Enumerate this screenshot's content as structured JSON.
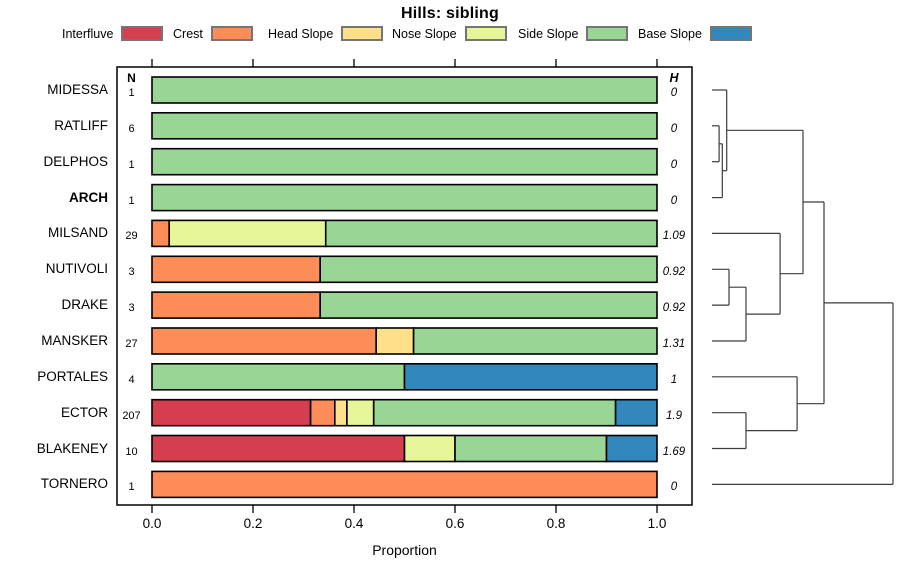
{
  "title": "Hills: sibling",
  "n_header": "N",
  "h_header": "H",
  "chart_data": {
    "type": "bar",
    "subtype": "horizontal-stacked-proportion-with-dendrogram",
    "title": "Hills: sibling",
    "xlabel": "Proportion",
    "xlim": [
      0,
      1
    ],
    "grid": false,
    "legend_position": "top",
    "x_ticks": [
      {
        "label": "0.0",
        "value": 0.0
      },
      {
        "label": "0.2",
        "value": 0.2
      },
      {
        "label": "0.4",
        "value": 0.4
      },
      {
        "label": "0.6",
        "value": 0.6
      },
      {
        "label": "0.8",
        "value": 0.8
      },
      {
        "label": "1.0",
        "value": 1.0
      }
    ],
    "categories": [
      "Interfluve",
      "Crest",
      "Head Slope",
      "Nose Slope",
      "Side Slope",
      "Base Slope"
    ],
    "colors": {
      "Interfluve": "#d53e4f",
      "Crest": "#fc8d59",
      "Head Slope": "#fee08b",
      "Nose Slope": "#e6f598",
      "Side Slope": "#99d594",
      "Base Slope": "#3288bd"
    },
    "rows": [
      {
        "label": "MIDESSA",
        "bold": false,
        "n": "1",
        "h": "0",
        "segments": [
          {
            "category": "Side Slope",
            "value": 1
          }
        ]
      },
      {
        "label": "RATLIFF",
        "bold": false,
        "n": "6",
        "h": "0",
        "segments": [
          {
            "category": "Side Slope",
            "value": 1
          }
        ]
      },
      {
        "label": "DELPHOS",
        "bold": false,
        "n": "1",
        "h": "0",
        "segments": [
          {
            "category": "Side Slope",
            "value": 1
          }
        ]
      },
      {
        "label": "ARCH",
        "bold": true,
        "n": "1",
        "h": "0",
        "segments": [
          {
            "category": "Side Slope",
            "value": 1
          }
        ]
      },
      {
        "label": "MILSAND",
        "bold": false,
        "n": "29",
        "h": "1.09",
        "segments": [
          {
            "category": "Crest",
            "value": 0.034
          },
          {
            "category": "Nose Slope",
            "value": 0.31
          },
          {
            "category": "Side Slope",
            "value": 0.656
          }
        ]
      },
      {
        "label": "NUTIVOLI",
        "bold": false,
        "n": "3",
        "h": "0.92",
        "segments": [
          {
            "category": "Crest",
            "value": 0.333
          },
          {
            "category": "Side Slope",
            "value": 0.667
          }
        ]
      },
      {
        "label": "DRAKE",
        "bold": false,
        "n": "3",
        "h": "0.92",
        "segments": [
          {
            "category": "Crest",
            "value": 0.333
          },
          {
            "category": "Side Slope",
            "value": 0.667
          }
        ]
      },
      {
        "label": "MANSKER",
        "bold": false,
        "n": "27",
        "h": "1.31",
        "segments": [
          {
            "category": "Crest",
            "value": 0.444
          },
          {
            "category": "Head Slope",
            "value": 0.074
          },
          {
            "category": "Side Slope",
            "value": 0.482
          }
        ]
      },
      {
        "label": "PORTALES",
        "bold": false,
        "n": "4",
        "h": "1",
        "segments": [
          {
            "category": "Side Slope",
            "value": 0.5
          },
          {
            "category": "Base Slope",
            "value": 0.5
          }
        ]
      },
      {
        "label": "ECTOR",
        "bold": false,
        "n": "207",
        "h": "1.9",
        "segments": [
          {
            "category": "Interfluve",
            "value": 0.314
          },
          {
            "category": "Crest",
            "value": 0.048
          },
          {
            "category": "Head Slope",
            "value": 0.024
          },
          {
            "category": "Nose Slope",
            "value": 0.053
          },
          {
            "category": "Side Slope",
            "value": 0.479
          },
          {
            "category": "Base Slope",
            "value": 0.082
          }
        ]
      },
      {
        "label": "BLAKENEY",
        "bold": false,
        "n": "10",
        "h": "1.69",
        "segments": [
          {
            "category": "Interfluve",
            "value": 0.5
          },
          {
            "category": "Nose Slope",
            "value": 0.1
          },
          {
            "category": "Side Slope",
            "value": 0.3
          },
          {
            "category": "Base Slope",
            "value": 0.1
          }
        ]
      },
      {
        "label": "TORNERO",
        "bold": false,
        "n": "1",
        "h": "0",
        "segments": [
          {
            "category": "Crest",
            "value": 1
          }
        ]
      }
    ],
    "dendrogram": {
      "merges": [
        {
          "a": "RATLIFF",
          "b": "DELPHOS",
          "h": 0.039
        },
        {
          "a": "#0",
          "b": "ARCH",
          "h": 0.057
        },
        {
          "a": "MIDESSA",
          "b": "#1",
          "h": 0.081
        },
        {
          "a": "NUTIVOLI",
          "b": "DRAKE",
          "h": 0.094
        },
        {
          "a": "#3",
          "b": "MANSKER",
          "h": 0.188
        },
        {
          "a": "MILSAND",
          "b": "#4",
          "h": 0.376
        },
        {
          "a": "ECTOR",
          "b": "BLAKENEY",
          "h": 0.188
        },
        {
          "a": "PORTALES",
          "b": "#6",
          "h": 0.47
        },
        {
          "a": "#2",
          "b": "#5",
          "h": 0.503
        },
        {
          "a": "#8",
          "b": "#7",
          "h": 0.619
        },
        {
          "a": "#9",
          "b": "TORNERO",
          "h": 1.0
        }
      ]
    }
  }
}
